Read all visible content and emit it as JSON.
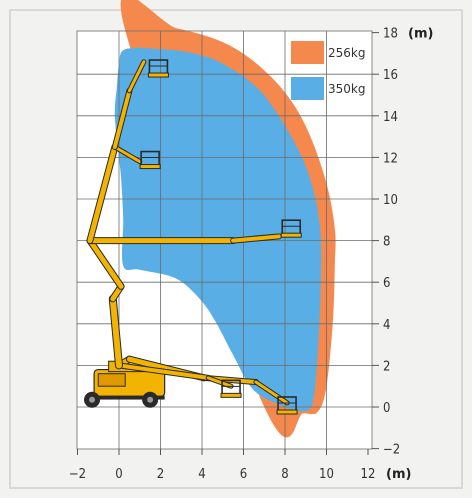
{
  "diagram": {
    "type": "working-range-diagram",
    "axes": {
      "x": {
        "min": -2,
        "max": 12,
        "ticks": [
          -2,
          0,
          2,
          4,
          6,
          8,
          10,
          12
        ],
        "unit": "(m)"
      },
      "y": {
        "min": -2,
        "max": 18,
        "ticks": [
          -2,
          0,
          2,
          4,
          6,
          8,
          10,
          12,
          14,
          16,
          18
        ],
        "unit": "(m)"
      },
      "grid": true
    },
    "legend": [
      {
        "label": "256kg",
        "color": "#f5894d"
      },
      {
        "label": "350kg",
        "color": "#5aaee6"
      }
    ],
    "envelopes": {
      "capacity_256kg": [
        [
          0.2,
          18.5
        ],
        [
          2.8,
          18.2
        ],
        [
          5.3,
          17.4
        ],
        [
          7.3,
          15.9
        ],
        [
          8.8,
          13.9
        ],
        [
          9.9,
          11.1
        ],
        [
          10.4,
          8.6
        ],
        [
          10.4,
          6.8
        ],
        [
          10.3,
          4.0
        ],
        [
          10.0,
          1.0
        ],
        [
          9.6,
          -0.2
        ],
        [
          8.9,
          -0.3
        ],
        [
          7.0,
          0
        ]
      ],
      "capacity_350kg": [
        [
          0.3,
          17.2
        ],
        [
          2.1,
          17.2
        ],
        [
          3.6,
          17.0
        ],
        [
          5.0,
          16.5
        ],
        [
          6.8,
          15.2
        ],
        [
          8.3,
          13.0
        ],
        [
          9.2,
          11.0
        ],
        [
          9.7,
          8.5
        ],
        [
          9.7,
          5.0
        ],
        [
          9.5,
          1.5
        ],
        [
          9.3,
          0.1
        ],
        [
          8.9,
          -0.2
        ],
        [
          8.0,
          0
        ],
        [
          6.5,
          0.8
        ],
        [
          5.5,
          2.5
        ],
        [
          4.6,
          4.2
        ],
        [
          3.8,
          5.3
        ],
        [
          2.7,
          6.2
        ],
        [
          1.0,
          6.6
        ],
        [
          0.2,
          6.8
        ],
        [
          0.2,
          9.0
        ],
        [
          0.1,
          11.0
        ],
        [
          0.0,
          12.0
        ],
        [
          -0.2,
          14.0
        ],
        [
          -0.1,
          15.4
        ],
        [
          0.0,
          16.4
        ]
      ]
    },
    "machine": {
      "base_position": [
        0.7,
        0.6
      ],
      "boom_poses": [
        {
          "name": "max-height",
          "platform": [
            1.9,
            16.1
          ]
        },
        {
          "name": "upper-mid",
          "platform": [
            1.5,
            11.8
          ]
        },
        {
          "name": "max-outreach",
          "platform": [
            8.3,
            8.4
          ]
        },
        {
          "name": "low-mid",
          "platform": [
            5.4,
            0.8
          ]
        },
        {
          "name": "below-ground",
          "platform": [
            8.1,
            0.0
          ]
        }
      ]
    }
  }
}
